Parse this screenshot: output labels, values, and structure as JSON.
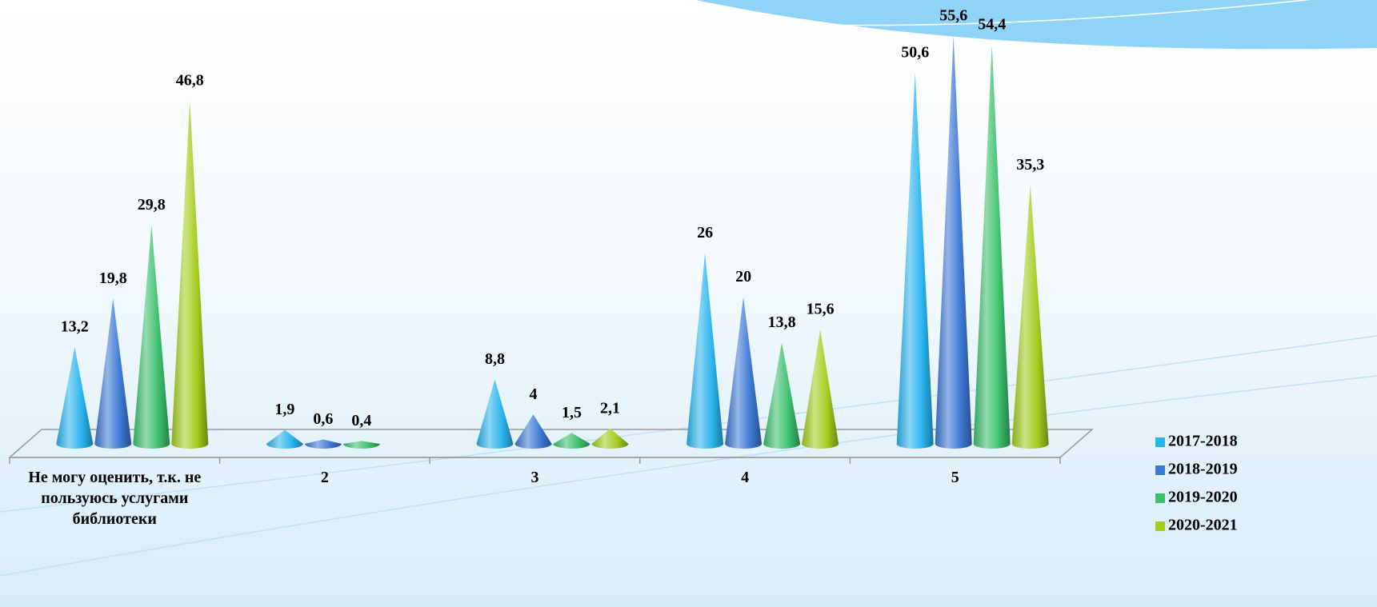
{
  "chart_data": {
    "type": "bar",
    "categories": [
      "Не могу оценить, т.к. не пользуюсь услугами библиотеки",
      "2",
      "3",
      "4",
      "5"
    ],
    "series": [
      {
        "name": "2017-2018",
        "color": "#2ab4ee",
        "values": [
          13.2,
          1.9,
          8.8,
          26,
          50.6
        ],
        "value_labels": [
          "13,2",
          "1,9",
          "8,8",
          "26",
          "50,6"
        ]
      },
      {
        "name": "2018-2019",
        "color": "#3d78d3",
        "values": [
          19.8,
          0.6,
          4,
          20,
          55.6
        ],
        "value_labels": [
          "19,8",
          "0,6",
          "4",
          "20",
          "55,6"
        ]
      },
      {
        "name": "2019-2020",
        "color": "#3cbf6c",
        "values": [
          29.8,
          0.4,
          1.5,
          13.8,
          54.4
        ],
        "value_labels": [
          "29,8",
          "0,4",
          "1,5",
          "13,8",
          "54,4"
        ]
      },
      {
        "name": "2020-2021",
        "color": "#a3cc1e",
        "values": [
          46.8,
          null,
          2.1,
          15.6,
          35.3
        ],
        "value_labels": [
          "46,8",
          null,
          "2,1",
          "15,6",
          "35,3"
        ]
      }
    ],
    "legend": "right"
  }
}
